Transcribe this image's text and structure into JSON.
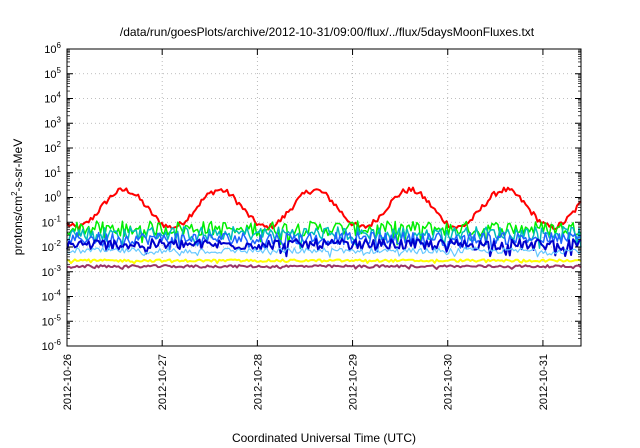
{
  "chart_data": {
    "type": "line",
    "title": "/data/run/goesPlots/archive/2012-10-31/09:00/flux/../flux/5daysMoonFluxes.txt",
    "xlabel": "Coordinated Universal Time (UTC)",
    "ylabel_main": "protons/cm",
    "ylabel_sup": "2",
    "ylabel_rest": "-s-sr-MeV",
    "y_scale": "log",
    "ylim_exp": [
      -6,
      6
    ],
    "x_ticks": [
      "2012-10-26",
      "2012-10-27",
      "2012-10-28",
      "2012-10-29",
      "2012-10-30",
      "2012-10-31"
    ],
    "x_range_days": [
      0,
      5.4
    ],
    "y_ticks": [
      {
        "base": "10",
        "exp": "6"
      },
      {
        "base": "10",
        "exp": "5"
      },
      {
        "base": "10",
        "exp": "4"
      },
      {
        "base": "10",
        "exp": "3"
      },
      {
        "base": "10",
        "exp": "2"
      },
      {
        "base": "10",
        "exp": "1"
      },
      {
        "base": "10",
        "exp": "0"
      },
      {
        "base": "10",
        "exp": "-1"
      },
      {
        "base": "10",
        "exp": "-2"
      },
      {
        "base": "10",
        "exp": "-3"
      },
      {
        "base": "10",
        "exp": "-4"
      },
      {
        "base": "10",
        "exp": "-5"
      },
      {
        "base": "10",
        "exp": "-6"
      }
    ],
    "grid": true,
    "legend": "none",
    "series": [
      {
        "color": "#ff0000",
        "width": 2.0,
        "mode": "sin",
        "base": -0.45,
        "amp": 0.75,
        "phase": 0.35,
        "noise": 0.12
      },
      {
        "color": "#00ee00",
        "width": 1.5,
        "mode": "noise",
        "base": -1.25,
        "amp": 0.0,
        "noise": 0.3
      },
      {
        "color": "#00bbbb",
        "width": 1.5,
        "mode": "noise",
        "base": -1.45,
        "amp": 0.0,
        "noise": 0.28
      },
      {
        "color": "#1e64ff",
        "width": 1.5,
        "mode": "noise",
        "base": -1.65,
        "amp": 0.0,
        "noise": 0.25
      },
      {
        "color": "#0000cc",
        "width": 2.0,
        "mode": "noise",
        "base": -1.9,
        "amp": 0.0,
        "noise": 0.22
      },
      {
        "color": "#66c8ff",
        "width": 1.2,
        "mode": "noise",
        "base": -2.15,
        "amp": 0.0,
        "noise": 0.12
      },
      {
        "color": "#ffff00",
        "width": 2.0,
        "mode": "noise",
        "base": -2.55,
        "amp": 0.0,
        "noise": 0.05
      },
      {
        "color": "#993366",
        "width": 2.0,
        "mode": "noise",
        "base": -2.78,
        "amp": 0.0,
        "noise": 0.05
      }
    ]
  }
}
